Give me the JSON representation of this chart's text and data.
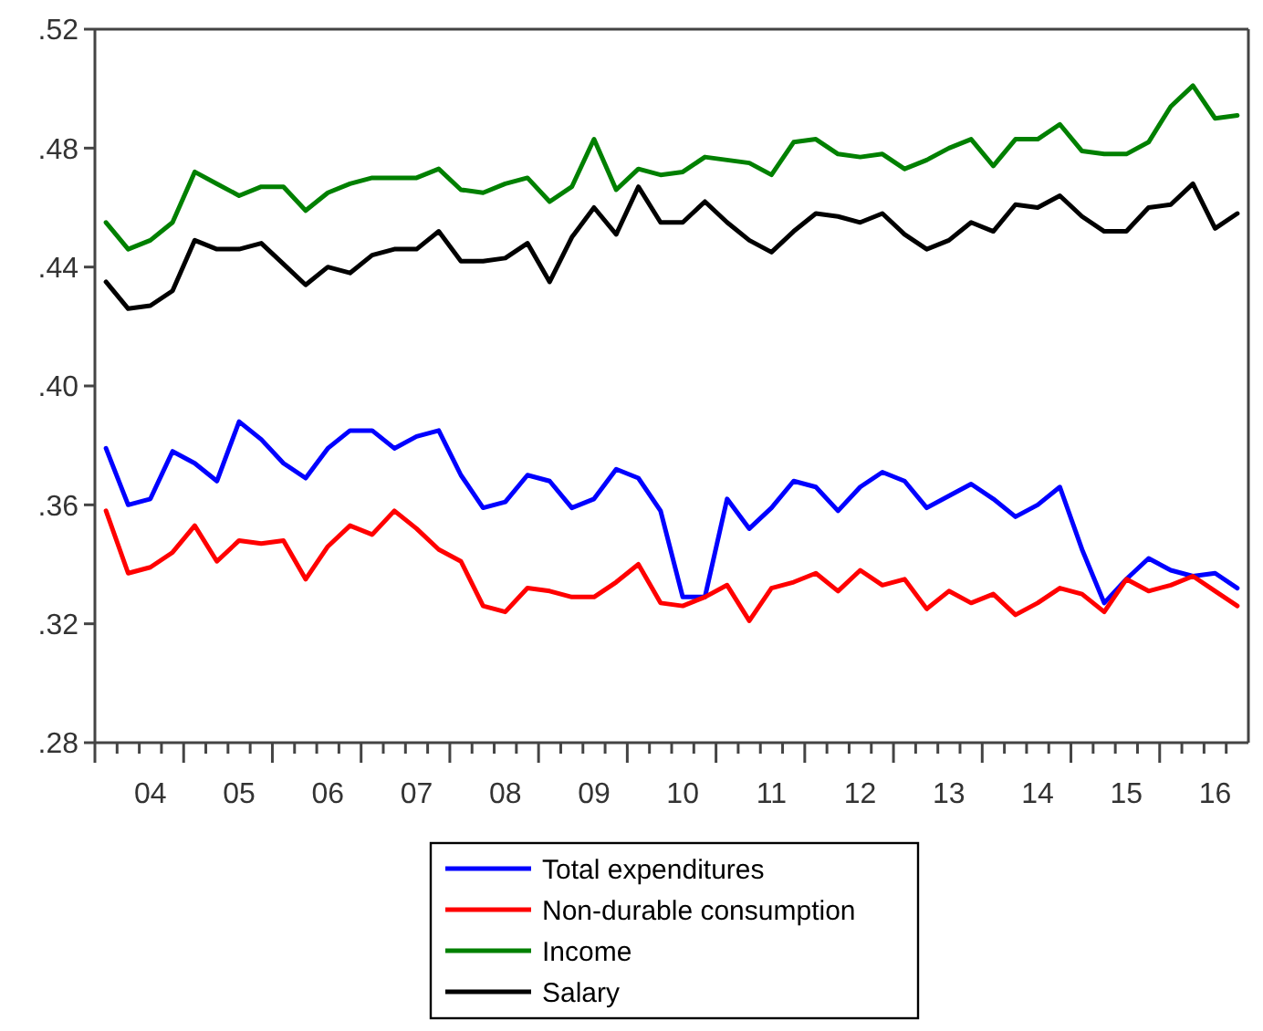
{
  "chart_data": {
    "type": "line",
    "legend": "bottom",
    "grid": false,
    "line_style": "solid",
    "categories": [
      null,
      null,
      "04",
      null,
      null,
      null,
      "05",
      null,
      null,
      null,
      "06",
      null,
      null,
      null,
      "07",
      null,
      null,
      null,
      "08",
      null,
      null,
      null,
      "09",
      null,
      null,
      null,
      "10",
      null,
      null,
      null,
      "11",
      null,
      null,
      null,
      "12",
      null,
      null,
      null,
      "13",
      null,
      null,
      null,
      "14",
      null,
      null,
      null,
      "15",
      null,
      null,
      null,
      "16",
      null
    ],
    "ylim": [
      0.28,
      0.52
    ],
    "yticks": [
      {
        "value": 0.28,
        "label": ".28"
      },
      {
        "value": 0.32,
        "label": ".32"
      },
      {
        "value": 0.36,
        "label": ".36"
      },
      {
        "value": 0.4,
        "label": ".40"
      },
      {
        "value": 0.44,
        "label": ".44"
      },
      {
        "value": 0.48,
        "label": ".48"
      },
      {
        "value": 0.52,
        "label": ".52"
      }
    ],
    "series": [
      {
        "name": "Total expenditures",
        "color": "#0000ff",
        "values": [
          0.379,
          0.36,
          0.362,
          0.378,
          0.374,
          0.368,
          0.388,
          0.382,
          0.374,
          0.369,
          0.379,
          0.385,
          0.385,
          0.379,
          0.383,
          0.385,
          0.37,
          0.359,
          0.361,
          0.37,
          0.368,
          0.359,
          0.362,
          0.372,
          0.369,
          0.358,
          0.329,
          0.329,
          0.362,
          0.352,
          0.359,
          0.368,
          0.366,
          0.358,
          0.366,
          0.371,
          0.368,
          0.359,
          0.363,
          0.367,
          0.362,
          0.356,
          0.36,
          0.366,
          0.345,
          0.327,
          0.335,
          0.342,
          0.338,
          0.336,
          0.337,
          0.332
        ]
      },
      {
        "name": "Non-durable consumption",
        "color": "#ff0000",
        "values": [
          0.358,
          0.337,
          0.339,
          0.344,
          0.353,
          0.341,
          0.348,
          0.347,
          0.348,
          0.335,
          0.346,
          0.353,
          0.35,
          0.358,
          0.352,
          0.345,
          0.341,
          0.326,
          0.324,
          0.332,
          0.331,
          0.329,
          0.329,
          0.334,
          0.34,
          0.327,
          0.326,
          0.329,
          0.333,
          0.321,
          0.332,
          0.334,
          0.337,
          0.331,
          0.338,
          0.333,
          0.335,
          0.325,
          0.331,
          0.327,
          0.33,
          0.323,
          0.327,
          0.332,
          0.33,
          0.324,
          0.335,
          0.331,
          0.333,
          0.336,
          0.331,
          0.326
        ]
      },
      {
        "name": "Income",
        "color": "#008000",
        "values": [
          0.455,
          0.446,
          0.449,
          0.455,
          0.472,
          0.468,
          0.464,
          0.467,
          0.467,
          0.459,
          0.465,
          0.468,
          0.47,
          0.47,
          0.47,
          0.473,
          0.466,
          0.465,
          0.468,
          0.47,
          0.462,
          0.467,
          0.483,
          0.466,
          0.473,
          0.471,
          0.472,
          0.477,
          0.476,
          0.475,
          0.471,
          0.482,
          0.483,
          0.478,
          0.477,
          0.478,
          0.473,
          0.476,
          0.48,
          0.483,
          0.474,
          0.483,
          0.483,
          0.488,
          0.479,
          0.478,
          0.478,
          0.482,
          0.494,
          0.501,
          0.49,
          0.491
        ]
      },
      {
        "name": "Salary",
        "color": "#000000",
        "values": [
          0.435,
          0.426,
          0.427,
          0.432,
          0.449,
          0.446,
          0.446,
          0.448,
          0.441,
          0.434,
          0.44,
          0.438,
          0.444,
          0.446,
          0.446,
          0.452,
          0.442,
          0.442,
          0.443,
          0.448,
          0.435,
          0.45,
          0.46,
          0.451,
          0.467,
          0.455,
          0.455,
          0.462,
          0.455,
          0.449,
          0.445,
          0.452,
          0.458,
          0.457,
          0.455,
          0.458,
          0.451,
          0.446,
          0.449,
          0.455,
          0.452,
          0.461,
          0.46,
          0.464,
          0.457,
          0.452,
          0.452,
          0.46,
          0.461,
          0.468,
          0.453,
          0.458
        ]
      }
    ]
  }
}
